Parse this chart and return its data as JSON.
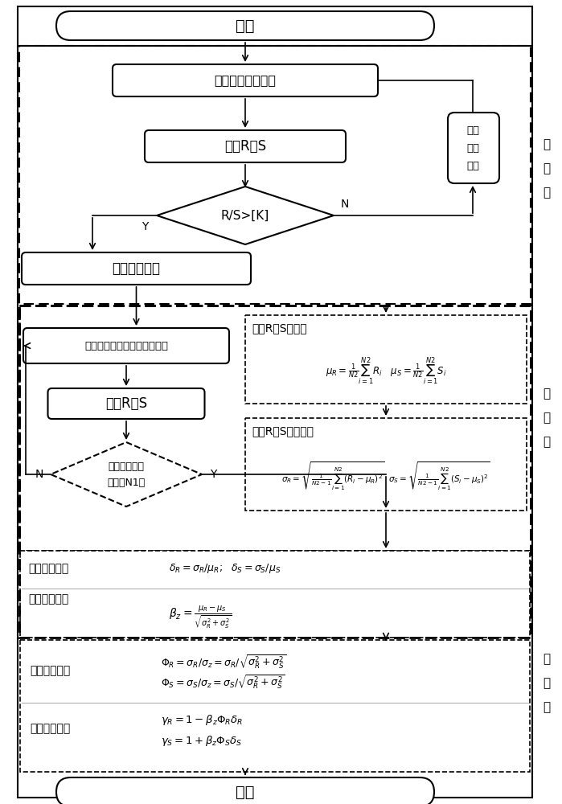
{
  "bg_color": "#ffffff",
  "node_start": "开始",
  "node_input": "输入结构初始尺寸",
  "node_calc_rs": "计算R、S",
  "node_adjust_line1": "调整",
  "node_adjust_line2": "结构",
  "node_adjust_line3": "尺寸",
  "node_diamond": "R/S>[K]",
  "node_Y1": "Y",
  "node_N1": "N",
  "node_record": "记录结构尺寸",
  "node_backtrack": "根据统计资料反演参数随机数",
  "node_output_rs": "输出R、S",
  "node_diamond2_line1": "反演次数达临",
  "node_diamond2_line2": "界次数N1？",
  "node_N2": "N",
  "node_Y2": "Y",
  "node_mean_title": "统计R、S的均值",
  "node_std_title": "统计R、S的标准差",
  "node_cv_label": "计算变异系数",
  "node_rel_label": "计算可靠指标",
  "node_sep_label": "计算分离系数",
  "node_coeff_label": "计算分项系数",
  "node_end": "结束",
  "step1_chars": [
    "第",
    "一",
    "步"
  ],
  "step2_chars": [
    "第",
    "二",
    "步"
  ],
  "step3_chars": [
    "第",
    "三",
    "步"
  ]
}
